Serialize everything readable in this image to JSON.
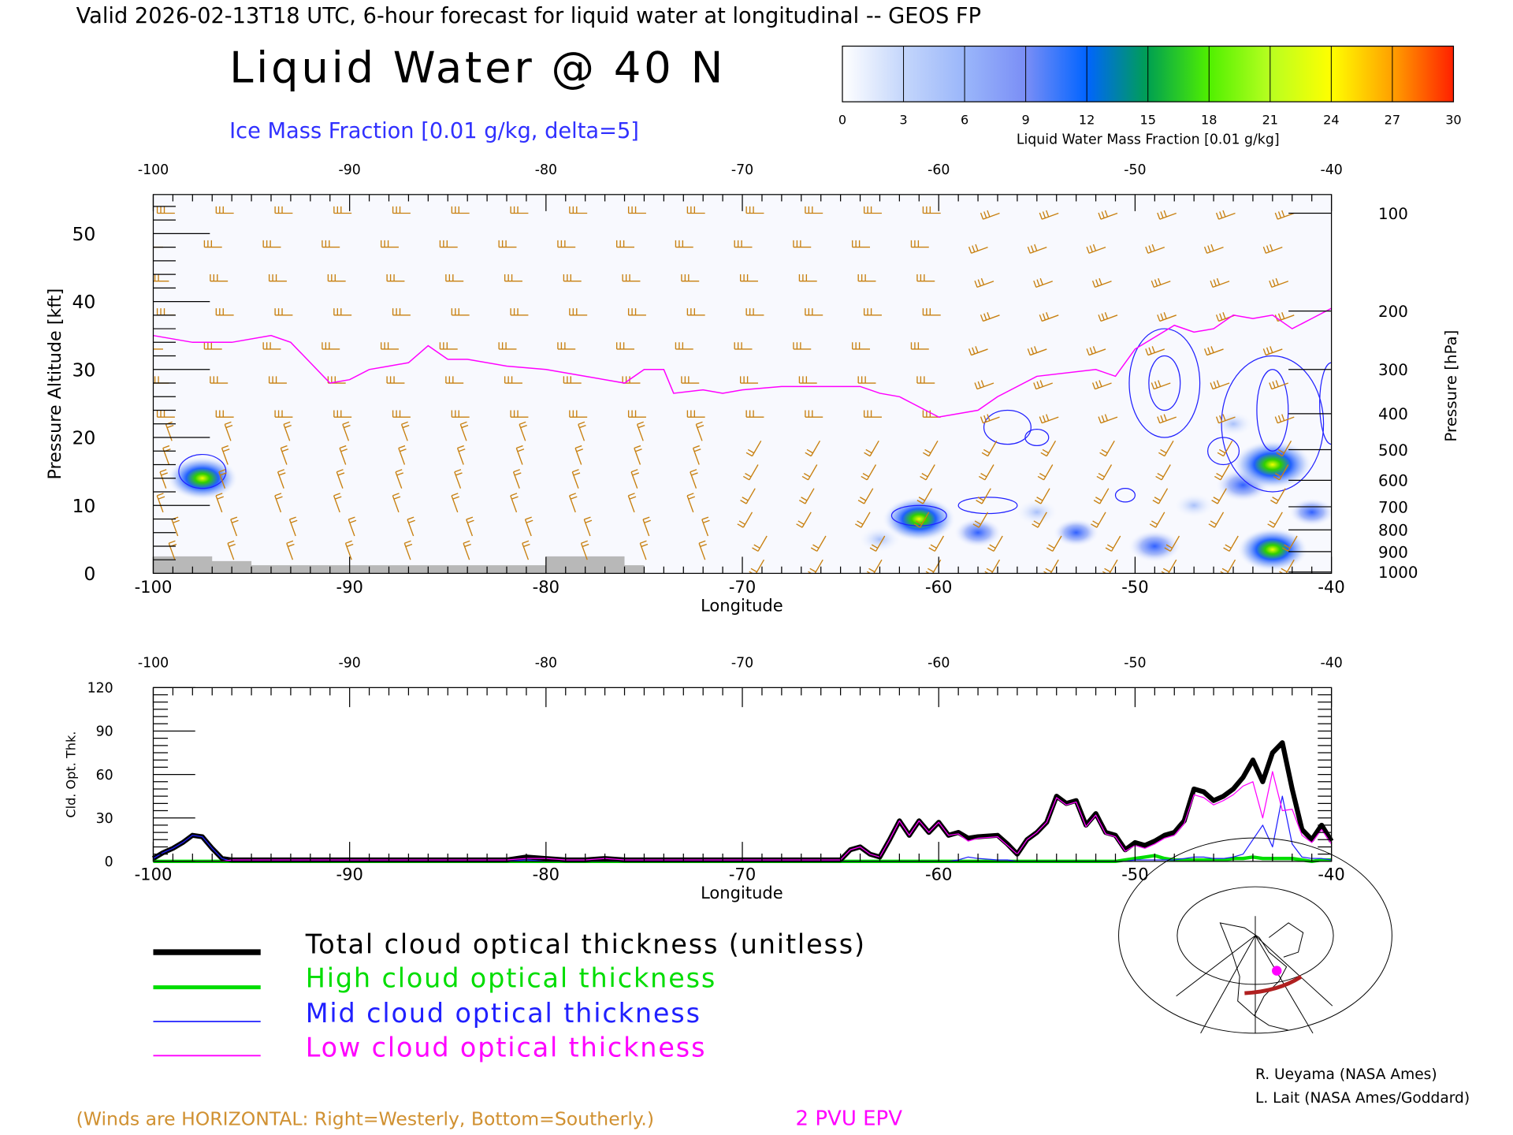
{
  "header": {
    "valid_line": "Valid 2026-02-13T18 UTC, 6-hour forecast for liquid water at longitudinal -- GEOS FP",
    "title": "Liquid Water @ 40 N",
    "subtitle": "Ice Mass Fraction [0.01 g/kg, delta=5]"
  },
  "colorbar": {
    "label": "Liquid Water Mass Fraction [0.01 g/kg]",
    "ticks": [
      "0",
      "3",
      "6",
      "9",
      "12",
      "15",
      "18",
      "21",
      "24",
      "27",
      "30"
    ],
    "colors": [
      "#ffffff",
      "#c8d8fa",
      "#a8c0fa",
      "#8aa0f8",
      "#5a78f8",
      "#0060ff",
      "#00a060",
      "#20d000",
      "#80ff00",
      "#c8ff20",
      "#ffff00",
      "#ffc000",
      "#ff9000",
      "#ff6000",
      "#ff2000"
    ]
  },
  "footer": {
    "winds_note": "(Winds are HORIZONTAL: Right=Westerly, Bottom=Southerly.)",
    "epv_label": "2 PVU EPV",
    "credit_1": "R. Ueyama (NASA Ames)",
    "credit_2": "L. Lait (NASA Ames/Goddard)"
  },
  "legend": [
    {
      "label": "Total cloud optical thickness (unitless)",
      "color": "#000000"
    },
    {
      "label": "High cloud optical thickness",
      "color": "#00dd00"
    },
    {
      "label": "Mid cloud optical thickness",
      "color": "#2020ff"
    },
    {
      "label": "Low cloud optical thickness",
      "color": "#ff00ff"
    }
  ],
  "chart_data": [
    {
      "type": "heatmap",
      "title": "Liquid Water @ 40 N",
      "xlabel": "Longitude",
      "ylabel": "Pressure Altitude [kft]",
      "ylabel_right": "Pressure [hPa]",
      "xlim": [
        -100,
        -40
      ],
      "ylim": [
        0,
        56
      ],
      "x_ticks": [
        "-100",
        "-90",
        "-80",
        "-70",
        "-60",
        "-50",
        "-40"
      ],
      "top_ticks": [
        "-100",
        "-90",
        "-80",
        "-70",
        "-60",
        "-50",
        "-40"
      ],
      "y_ticks": [
        "0",
        "10",
        "20",
        "30",
        "40",
        "50"
      ],
      "pressure_ticks": [
        {
          "label": "100",
          "kft": 53
        },
        {
          "label": "200",
          "kft": 38.6
        },
        {
          "label": "300",
          "kft": 30
        },
        {
          "label": "400",
          "kft": 23.5
        },
        {
          "label": "500",
          "kft": 18.2
        },
        {
          "label": "600",
          "kft": 13.7
        },
        {
          "label": "700",
          "kft": 9.8
        },
        {
          "label": "800",
          "kft": 6.4
        },
        {
          "label": "900",
          "kft": 3.2
        },
        {
          "label": "1000",
          "kft": 0.2
        }
      ],
      "liquid_water_blobs": [
        {
          "lon": -97.5,
          "kft": 14,
          "value": 16
        },
        {
          "lon": -61,
          "kft": 8,
          "value": 17
        },
        {
          "lon": -58,
          "kft": 6,
          "value": 6
        },
        {
          "lon": -63,
          "kft": 5,
          "value": 4
        },
        {
          "lon": -55,
          "kft": 9,
          "value": 4
        },
        {
          "lon": -53,
          "kft": 6,
          "value": 5
        },
        {
          "lon": -49,
          "kft": 4,
          "value": 8
        },
        {
          "lon": -44.5,
          "kft": 13,
          "value": 9
        },
        {
          "lon": -43,
          "kft": 16,
          "value": 20
        },
        {
          "lon": -43,
          "kft": 3.5,
          "value": 16
        },
        {
          "lon": -41,
          "kft": 9,
          "value": 5
        },
        {
          "lon": -47,
          "kft": 10,
          "value": 3
        },
        {
          "lon": -45,
          "kft": 22,
          "value": 3
        }
      ],
      "ice_contours": [
        {
          "lon": -97.5,
          "kft": 15,
          "rx": 1.2,
          "rz": 2.5
        },
        {
          "lon": -61,
          "kft": 8.5,
          "rx": 1.4,
          "rz": 1.5
        },
        {
          "lon": -57.5,
          "kft": 10,
          "rx": 1.5,
          "rz": 1.2
        },
        {
          "lon": -56.5,
          "kft": 21.5,
          "rx": 1.2,
          "rz": 2.5
        },
        {
          "lon": -55,
          "kft": 20,
          "rx": 0.6,
          "rz": 1.2
        },
        {
          "lon": -50.5,
          "kft": 11.5,
          "rx": 0.5,
          "rz": 1
        },
        {
          "lon": -48.5,
          "kft": 28,
          "rx": 1.8,
          "rz": 8
        },
        {
          "lon": -48.5,
          "kft": 28,
          "rx": 0.8,
          "rz": 4
        },
        {
          "lon": -45.5,
          "kft": 18,
          "rx": 0.8,
          "rz": 2
        },
        {
          "lon": -43,
          "kft": 22,
          "rx": 2.6,
          "rz": 10
        },
        {
          "lon": -43,
          "kft": 24,
          "rx": 0.8,
          "rz": 6
        },
        {
          "lon": -40,
          "kft": 25,
          "rx": 0.6,
          "rz": 6
        }
      ],
      "epv_2pvu_line": {
        "lon": [
          -100,
          -98,
          -96,
          -94,
          -93,
          -92,
          -91,
          -90,
          -89,
          -88,
          -87,
          -86,
          -85,
          -84,
          -82,
          -80,
          -78,
          -76,
          -75,
          -74,
          -73.5,
          -72,
          -71,
          -70,
          -68,
          -66,
          -64,
          -63,
          -62,
          -60,
          -58,
          -57,
          -55,
          -52,
          -51,
          -50,
          -48,
          -47,
          -46,
          -45,
          -44,
          -43,
          -42,
          -41,
          -40
        ],
        "kft": [
          35,
          34,
          34,
          35,
          34,
          31,
          28,
          28.5,
          30,
          30.5,
          31,
          33.5,
          31.5,
          31.5,
          30.5,
          30,
          29,
          28,
          30,
          30,
          26.5,
          27,
          26.5,
          27,
          27.5,
          27.5,
          27.5,
          26.5,
          26,
          23,
          24,
          26,
          29,
          30,
          29,
          33,
          36.5,
          35.5,
          36,
          38,
          37.5,
          38,
          36,
          37.5,
          39
        ]
      },
      "topography_kft": {
        "lon": [
          -100,
          -99,
          -97,
          -95,
          -90,
          -85,
          -80,
          -78,
          -76,
          -75
        ],
        "kft": [
          2.5,
          2.5,
          1.8,
          1.2,
          1.2,
          1.2,
          2.5,
          2.5,
          1.2,
          0
        ]
      }
    },
    {
      "type": "line",
      "xlabel": "Longitude",
      "ylabel": "Cld. Opt. Thk.",
      "xlim": [
        -100,
        -40
      ],
      "ylim": [
        0,
        120
      ],
      "x_ticks": [
        "-100",
        "-90",
        "-80",
        "-70",
        "-60",
        "-50",
        "-40"
      ],
      "top_ticks": [
        "-100",
        "-90",
        "-80",
        "-70",
        "-60",
        "-50",
        "-40"
      ],
      "y_ticks": [
        "0",
        "30",
        "60",
        "90",
        "120"
      ],
      "x": [
        -100,
        -99.5,
        -99,
        -98.5,
        -98,
        -97.5,
        -97,
        -96.5,
        -96,
        -90,
        -82,
        -81,
        -80,
        -79,
        -78,
        -77,
        -76,
        -70,
        -65,
        -64.5,
        -64,
        -63.5,
        -63,
        -62.5,
        -62,
        -61.5,
        -61,
        -60.5,
        -60,
        -59.5,
        -59,
        -58.5,
        -58,
        -57,
        -56.5,
        -56,
        -55.5,
        -55,
        -54.5,
        -54,
        -53.5,
        -53,
        -52.5,
        -52,
        -51.5,
        -51,
        -50.5,
        -50,
        -49.5,
        -49,
        -48.5,
        -48,
        -47.5,
        -47,
        -46.5,
        -46,
        -45.5,
        -45,
        -44.5,
        -44,
        -43.5,
        -43,
        -42.5,
        -42,
        -41.5,
        -41,
        -40.5,
        -40
      ],
      "series": [
        {
          "name": "Total cloud optical thickness (unitless)",
          "values": [
            2,
            6,
            9,
            13,
            18,
            17,
            9,
            2,
            1,
            1,
            1,
            3,
            2,
            1,
            1,
            2,
            1,
            1,
            1,
            8,
            10,
            5,
            3,
            15,
            28,
            18,
            28,
            20,
            27,
            18,
            20,
            16,
            17,
            18,
            12,
            5,
            15,
            20,
            27,
            45,
            40,
            42,
            25,
            33,
            20,
            18,
            8,
            13,
            11,
            14,
            18,
            20,
            28,
            50,
            48,
            42,
            45,
            50,
            58,
            70,
            55,
            75,
            82,
            50,
            22,
            15,
            25,
            14
          ]
        },
        {
          "name": "High cloud optical thickness",
          "values": [
            0,
            0,
            0,
            0,
            0,
            0,
            0,
            0,
            0,
            0,
            0,
            0,
            0,
            0,
            0,
            0,
            0,
            0,
            0,
            0,
            0,
            0,
            0,
            0,
            0,
            0,
            0,
            0,
            0,
            0,
            0,
            0,
            0,
            0,
            0,
            0,
            0,
            0,
            0,
            0,
            0,
            0,
            0,
            0,
            0,
            0,
            1,
            2,
            3,
            4,
            2,
            1,
            1,
            1,
            1,
            1,
            1,
            2,
            2,
            3,
            2,
            2,
            2,
            2,
            1,
            0,
            1,
            1
          ]
        },
        {
          "name": "Mid cloud optical thickness",
          "values": [
            2,
            6,
            9,
            13,
            18,
            17,
            9,
            2,
            0,
            0,
            0,
            1,
            0,
            0,
            0,
            0,
            0,
            0,
            0,
            0,
            0,
            0,
            0,
            0,
            0,
            0,
            0,
            0,
            0,
            0,
            1,
            3,
            2,
            1,
            1,
            0,
            0,
            0,
            0,
            0,
            0,
            0,
            0,
            0,
            0,
            0,
            0,
            1,
            1,
            1,
            1,
            1,
            2,
            3,
            3,
            2,
            2,
            3,
            5,
            15,
            25,
            10,
            45,
            12,
            3,
            2,
            2,
            1
          ]
        },
        {
          "name": "Low cloud optical thickness",
          "values": [
            0,
            0,
            0,
            0,
            0,
            0,
            0,
            0,
            1,
            1,
            1,
            2,
            2,
            1,
            1,
            2,
            1,
            1,
            1,
            8,
            10,
            5,
            3,
            15,
            28,
            18,
            28,
            20,
            27,
            18,
            19,
            14,
            16,
            17,
            11,
            5,
            15,
            20,
            27,
            44,
            39,
            41,
            24,
            32,
            19,
            17,
            7,
            11,
            9,
            12,
            16,
            18,
            26,
            46,
            44,
            39,
            42,
            46,
            52,
            55,
            30,
            62,
            35,
            36,
            18,
            13,
            22,
            12
          ]
        }
      ]
    }
  ]
}
